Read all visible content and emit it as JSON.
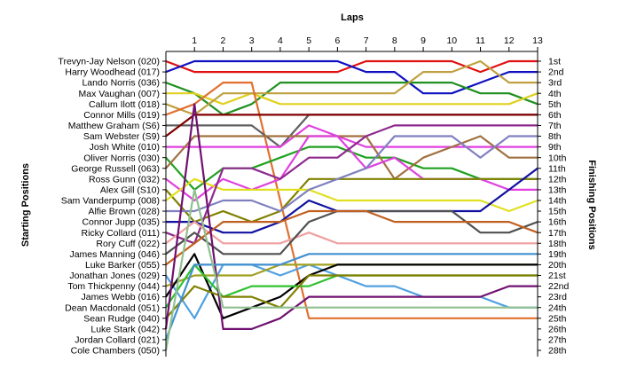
{
  "chart_data": {
    "type": "line",
    "title": "",
    "xlabel": "Laps",
    "ylabel_left": "Starting Positions",
    "ylabel_right": "Finishing Positions",
    "x": [
      0,
      1,
      2,
      3,
      4,
      5,
      6,
      7,
      8,
      9,
      10,
      11,
      12,
      13
    ],
    "x_tick_labels": [
      "1",
      "2",
      "3",
      "4",
      "5",
      "6",
      "7",
      "8",
      "9",
      "10",
      "11",
      "12",
      "13"
    ],
    "y_inverted": true,
    "ylim": [
      1,
      28
    ],
    "starting_positions": [
      "Trevyn-Jay Nelson (020)",
      "Harry Woodhead (017)",
      "Lando Norris (036)",
      "Max Vaughan (007)",
      "Callum Ilott (018)",
      "Connor Mills (019)",
      "Matthew Graham (S6)",
      "Sam Webster (S9)",
      "Josh White (010)",
      "Oliver Norris (030)",
      "George Russell (063)",
      "Ross Gunn (032)",
      "Alex Gill (S10)",
      "Sam Vanderpump (008)",
      "Alfie Brown (028)",
      "Connor Jupp (035)",
      "Ricky Collard (011)",
      "Rory Cuff (022)",
      "James Manning (046)",
      "Luke Barker (055)",
      "Jonathan Jones (029)",
      "Tom Thickpenny (044)",
      "James Webb (016)",
      "Dean Macdonald (051)",
      "Sean Rudge (040)",
      "Luke Stark (042)",
      "Jordan Collard (021)",
      "Cole Chambers (050)"
    ],
    "finishing_labels": [
      "1st",
      "2nd",
      "3rd",
      "4th",
      "5th",
      "6th",
      "7th",
      "8th",
      "9th",
      "10th",
      "11th",
      "12th",
      "13th",
      "14th",
      "15th",
      "16th",
      "17th",
      "18th",
      "19th",
      "20th",
      "21st",
      "22nd",
      "23rd",
      "24th",
      "25th",
      "26th",
      "27th",
      "28th"
    ],
    "series": [
      {
        "color": "#e01010",
        "values": [
          1,
          2,
          2,
          2,
          2,
          2,
          2,
          1,
          1,
          1,
          1,
          2,
          1,
          1
        ]
      },
      {
        "color": "#1010c0",
        "values": [
          2,
          1,
          1,
          1,
          1,
          1,
          1,
          2,
          2,
          4,
          4,
          3,
          2,
          2
        ]
      },
      {
        "color": "#209020",
        "values": [
          3,
          4,
          6,
          5,
          3,
          3,
          3,
          3,
          3,
          3,
          3,
          4,
          4,
          5
        ]
      },
      {
        "color": "#e0d020",
        "values": [
          4,
          4,
          5,
          4,
          5,
          5,
          5,
          5,
          5,
          5,
          5,
          5,
          5,
          4
        ]
      },
      {
        "color": "#c0a040",
        "values": [
          5,
          6,
          4,
          4,
          4,
          4,
          4,
          4,
          4,
          2,
          2,
          1,
          3,
          3
        ]
      },
      {
        "color": "#e07030",
        "values": [
          6,
          5,
          3,
          3,
          14,
          25,
          25,
          25,
          25,
          25,
          25,
          25,
          25,
          25
        ]
      },
      {
        "color": "#606060",
        "values": [
          7,
          7,
          7,
          7,
          9,
          6,
          6,
          6,
          6,
          6,
          6,
          6,
          6,
          6
        ]
      },
      {
        "color": "#800000",
        "values": [
          8,
          6,
          6,
          6,
          6,
          6,
          6,
          6,
          6,
          6,
          6,
          6,
          6,
          6
        ]
      },
      {
        "color": "#e040e0",
        "values": [
          9,
          9,
          9,
          9,
          9,
          7,
          8,
          9,
          9,
          9,
          9,
          9,
          9,
          9
        ]
      },
      {
        "color": "#20a020",
        "values": [
          10,
          13,
          11,
          11,
          10,
          9,
          9,
          10,
          10,
          11,
          11,
          12,
          12,
          12
        ]
      },
      {
        "color": "#a07040",
        "values": [
          11,
          8,
          8,
          8,
          8,
          8,
          8,
          8,
          12,
          10,
          9,
          8,
          10,
          10
        ]
      },
      {
        "color": "#e040e0",
        "values": [
          12,
          14,
          12,
          13,
          12,
          8,
          8,
          11,
          10,
          12,
          12,
          12,
          13,
          13
        ]
      },
      {
        "color": "#808000",
        "values": [
          13,
          16,
          15,
          16,
          15,
          12,
          12,
          12,
          12,
          12,
          12,
          12,
          12,
          12
        ]
      },
      {
        "color": "#e0e020",
        "values": [
          14,
          12,
          13,
          13,
          13,
          13,
          14,
          14,
          14,
          14,
          14,
          14,
          15,
          14
        ]
      },
      {
        "color": "#8080c0",
        "values": [
          15,
          15,
          14,
          14,
          15,
          13,
          12,
          11,
          8,
          8,
          8,
          10,
          8,
          8
        ]
      },
      {
        "color": "#1010a0",
        "values": [
          16,
          16,
          17,
          17,
          16,
          14,
          15,
          15,
          15,
          15,
          15,
          15,
          13,
          11
        ]
      },
      {
        "color": "#8e2a8e",
        "values": [
          17,
          18,
          11,
          11,
          12,
          10,
          10,
          8,
          7,
          7,
          7,
          7,
          7,
          7
        ]
      },
      {
        "color": "#f0a0a0",
        "values": [
          18,
          16,
          18,
          18,
          18,
          17,
          18,
          18,
          18,
          18,
          18,
          18,
          18,
          18
        ]
      },
      {
        "color": "#505050",
        "values": [
          19,
          17,
          19,
          19,
          19,
          16,
          15,
          15,
          15,
          15,
          15,
          17,
          17,
          16
        ]
      },
      {
        "color": "#c06020",
        "values": [
          20,
          18,
          16,
          16,
          16,
          15,
          15,
          15,
          16,
          16,
          16,
          16,
          16,
          17
        ]
      },
      {
        "color": "#50a0e0",
        "values": [
          21,
          25,
          20,
          20,
          21,
          20,
          21,
          22,
          22,
          23,
          23,
          23,
          24,
          24
        ]
      },
      {
        "color": "#a0a020",
        "values": [
          22,
          21,
          21,
          21,
          20,
          20,
          20,
          20,
          20,
          20,
          20,
          20,
          20,
          20
        ]
      },
      {
        "color": "#000000",
        "values": [
          23,
          19,
          25,
          24,
          23,
          21,
          20,
          20,
          20,
          20,
          20,
          20,
          20,
          20
        ]
      },
      {
        "color": "#30c030",
        "values": [
          24,
          20,
          23,
          22,
          22,
          22,
          21,
          21,
          21,
          21,
          21,
          21,
          21,
          21
        ]
      },
      {
        "color": "#808000",
        "values": [
          25,
          22,
          23,
          23,
          24,
          21,
          21,
          21,
          21,
          21,
          21,
          21,
          21,
          21
        ]
      },
      {
        "color": "#701070",
        "values": [
          26,
          5,
          26,
          26,
          25,
          23,
          23,
          23,
          23,
          23,
          23,
          23,
          22,
          22
        ]
      },
      {
        "color": "#4090d0",
        "values": [
          27,
          20,
          20,
          20,
          20,
          19,
          19,
          19,
          19,
          19,
          19,
          19,
          19,
          19
        ]
      },
      {
        "color": "#90c090",
        "values": [
          28,
          13,
          24,
          24,
          24,
          24,
          24,
          24,
          24,
          24,
          24,
          24,
          24,
          24
        ]
      }
    ]
  }
}
